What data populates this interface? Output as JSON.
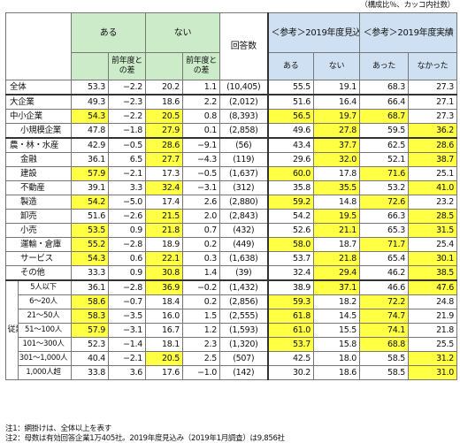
{
  "unit_note": "（構成比％、カッコ内社数）",
  "headers": {
    "aru": "ある",
    "nai": "ない",
    "diff": "前年度との差",
    "responses": "回答数",
    "ref_outlook": "＜参考＞2019年度見込み",
    "ref_actual": "＜参考＞2019年度実績",
    "ref_aru": "ある",
    "ref_nai": "ない",
    "ref_atta": "あった",
    "ref_nakatta": "なかった"
  },
  "employee_side_label": "従業員数別",
  "rows": [
    {
      "label": "全体",
      "a": "53.3",
      "ad": "−2.2",
      "n": "20.2",
      "nd": "1.1",
      "c": "(10,405)",
      "oa": "55.5",
      "on": "19.1",
      "ra": "68.3",
      "rn": "27.3"
    },
    {
      "label": "大企業",
      "a": "49.3",
      "ad": "−2.3",
      "n": "18.6",
      "nd": "2.2",
      "c": "(2,012)",
      "oa": "51.6",
      "on": "16.4",
      "ra": "66.4",
      "rn": "27.1"
    },
    {
      "label": "中小企業",
      "a": "54.3",
      "ad": "−2.2",
      "n": "20.5",
      "nd": "0.8",
      "c": "(8,393)",
      "oa": "56.5",
      "on": "19.7",
      "ra": "68.7",
      "rn": "27.3"
    },
    {
      "label": "小規模企業",
      "a": "47.8",
      "ad": "−1.8",
      "n": "27.9",
      "nd": "0.1",
      "c": "(2,858)",
      "oa": "49.6",
      "on": "27.8",
      "ra": "59.5",
      "rn": "36.2"
    },
    {
      "label": "農・林・水産",
      "a": "42.9",
      "ad": "−0.5",
      "n": "28.6",
      "nd": "−9.1",
      "c": "(56)",
      "oa": "43.4",
      "on": "37.7",
      "ra": "62.5",
      "rn": "28.6"
    },
    {
      "label": "金融",
      "a": "36.1",
      "ad": "6.5",
      "n": "27.7",
      "nd": "−4.3",
      "c": "(119)",
      "oa": "29.6",
      "on": "32.0",
      "ra": "52.1",
      "rn": "38.7"
    },
    {
      "label": "建設",
      "a": "57.9",
      "ad": "−2.1",
      "n": "17.3",
      "nd": "−0.5",
      "c": "(1,637)",
      "oa": "60.0",
      "on": "17.8",
      "ra": "71.6",
      "rn": "25.1"
    },
    {
      "label": "不動産",
      "a": "39.1",
      "ad": "3.3",
      "n": "32.4",
      "nd": "−3.1",
      "c": "(312)",
      "oa": "35.8",
      "on": "35.5",
      "ra": "53.2",
      "rn": "41.0"
    },
    {
      "label": "製造",
      "a": "54.2",
      "ad": "−5.0",
      "n": "17.4",
      "nd": "2.6",
      "c": "(2,880)",
      "oa": "59.2",
      "on": "14.8",
      "ra": "72.6",
      "rn": "23.2"
    },
    {
      "label": "卸売",
      "a": "51.6",
      "ad": "−2.6",
      "n": "21.5",
      "nd": "2.0",
      "c": "(2,843)",
      "oa": "54.2",
      "on": "19.5",
      "ra": "66.3",
      "rn": "28.5"
    },
    {
      "label": "小売",
      "a": "53.5",
      "ad": "0.9",
      "n": "21.8",
      "nd": "0.7",
      "c": "(432)",
      "oa": "52.6",
      "on": "21.1",
      "ra": "65.3",
      "rn": "31.5"
    },
    {
      "label": "運輸・倉庫",
      "a": "55.2",
      "ad": "−2.8",
      "n": "18.9",
      "nd": "0.2",
      "c": "(449)",
      "oa": "58.0",
      "on": "18.7",
      "ra": "71.7",
      "rn": "25.4"
    },
    {
      "label": "サービス",
      "a": "54.3",
      "ad": "0.6",
      "n": "22.1",
      "nd": "0.3",
      "c": "(1,638)",
      "oa": "53.7",
      "on": "21.8",
      "ra": "65.4",
      "rn": "30.1"
    },
    {
      "label": "その他",
      "a": "33.3",
      "ad": "0.9",
      "n": "30.8",
      "nd": "1.4",
      "c": "(39)",
      "oa": "32.4",
      "on": "29.4",
      "ra": "46.2",
      "rn": "38.5"
    },
    {
      "label": "5人以下",
      "a": "36.1",
      "ad": "−2.8",
      "n": "36.9",
      "nd": "−0.2",
      "c": "(1,432)",
      "oa": "38.9",
      "on": "37.1",
      "ra": "46.6",
      "rn": "47.6"
    },
    {
      "label": "6～20人",
      "a": "58.6",
      "ad": "−0.7",
      "n": "18.4",
      "nd": "0.2",
      "c": "(2,856)",
      "oa": "59.3",
      "on": "18.2",
      "ra": "72.2",
      "rn": "24.8"
    },
    {
      "label": "21～50人",
      "a": "58.3",
      "ad": "−3.5",
      "n": "16.0",
      "nd": "1.5",
      "c": "(2,555)",
      "oa": "61.8",
      "on": "14.5",
      "ra": "74.7",
      "rn": "21.9"
    },
    {
      "label": "51～100人",
      "a": "57.9",
      "ad": "−3.1",
      "n": "16.7",
      "nd": "1.2",
      "c": "(1,593)",
      "oa": "61.0",
      "on": "15.5",
      "ra": "74.1",
      "rn": "21.8"
    },
    {
      "label": "101～300人",
      "a": "52.3",
      "ad": "−1.4",
      "n": "18.1",
      "nd": "2.3",
      "c": "(1,320)",
      "oa": "53.7",
      "on": "15.8",
      "ra": "68.8",
      "rn": "25.5"
    },
    {
      "label": "301～1,000人",
      "a": "40.4",
      "ad": "−2.1",
      "n": "20.5",
      "nd": "2.5",
      "c": "(507)",
      "oa": "42.5",
      "on": "18.0",
      "ra": "58.5",
      "rn": "31.2"
    },
    {
      "label": "1,000人超",
      "a": "33.8",
      "ad": "3.6",
      "n": "17.6",
      "nd": "−1.0",
      "c": "(142)",
      "oa": "30.2",
      "on": "18.6",
      "ra": "58.5",
      "rn": "31.0"
    }
  ],
  "highlight_color": "#ffff44",
  "notes": [
    "注1：網掛けは、全体以上を表す",
    "注2：母数は有効回答企業1万405社。2019年度見込み（2019年1月調査）は9,856社"
  ]
}
